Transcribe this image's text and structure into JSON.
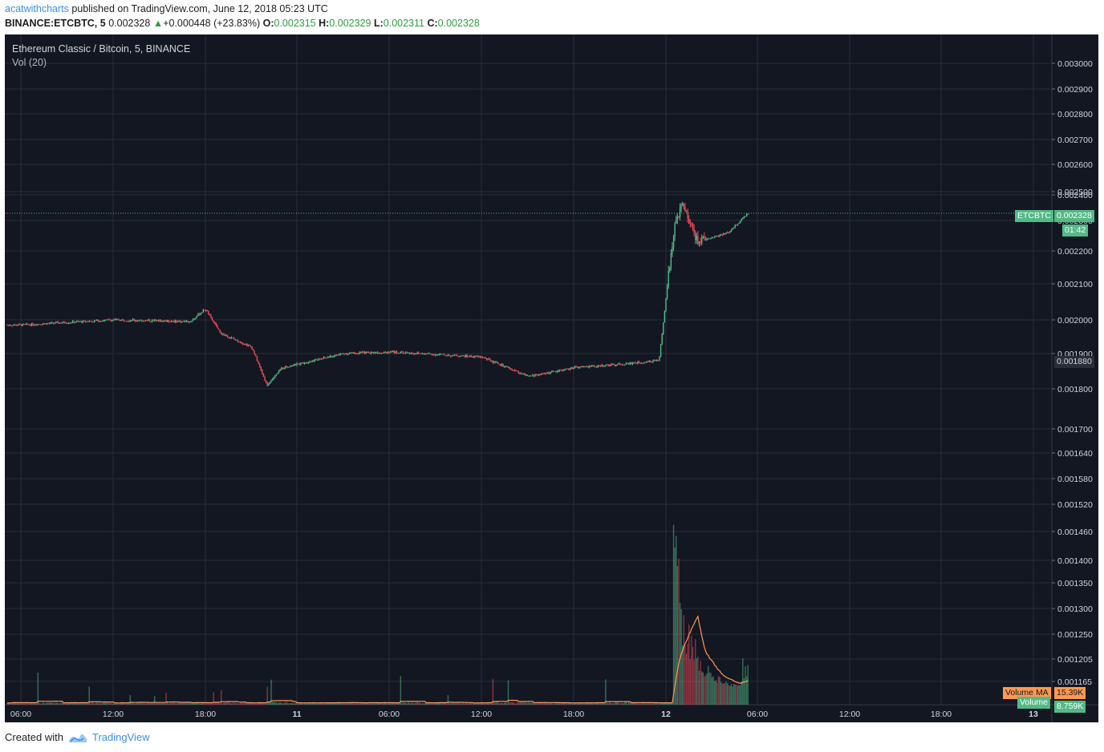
{
  "header": {
    "author": "acatwithcharts",
    "published_text": "published on TradingView.com, June 12, 2018 05:23 UTC",
    "symbol_line": "BINANCE:ETCBTC, 5",
    "last_price": "0.002328",
    "change": "+0.000448 (+23.83%)",
    "open_label": "O:",
    "open": "0.002315",
    "high_label": "H:",
    "high": "0.002329",
    "low_label": "L:",
    "low": "0.002311",
    "close_label": "C:",
    "close": "0.002328"
  },
  "legend": {
    "title": "Ethereum Classic / Bitcoin, 5, BINANCE",
    "volume_indicator": "Vol (20)"
  },
  "price_tags": {
    "symbol": "ETCBTC",
    "price": "0.002328",
    "countdown": "01:42",
    "prev_level": "0.001880",
    "volume_ma_label": "Volume MA",
    "volume_ma_value": "15.39K",
    "volume_label": "Volume",
    "volume_value": "8.759K"
  },
  "footer": {
    "created_with": "Created with",
    "brand": "TradingView"
  },
  "colors": {
    "background": "#131722",
    "grid": "#2a2e39",
    "up": "#53b987",
    "down": "#eb4d5c",
    "price_tag": "#53b987",
    "volume_ma": "#ff9850",
    "author_link": "#3d8ee8"
  },
  "chart_data": {
    "type": "candlestick",
    "title": "Ethereum Classic / Bitcoin, 5, BINANCE",
    "symbol": "BINANCE:ETCBTC",
    "interval": "5",
    "y_axis_ticks": [
      "0.003000",
      "0.002900",
      "0.002800",
      "0.002700",
      "0.002600",
      "0.002500",
      "0.002400",
      "0.002300",
      "0.002200",
      "0.002100",
      "0.002000",
      "0.001900",
      "0.001800",
      "0.001700",
      "0.001640",
      "0.001580",
      "0.001520",
      "0.001460",
      "0.001400",
      "0.001350",
      "0.001300",
      "0.001250",
      "0.001205",
      "0.001165"
    ],
    "x_axis_ticks": [
      "06:00",
      "12:00",
      "18:00",
      "11",
      "06:00",
      "12:00",
      "18:00",
      "12",
      "06:00",
      "12:00",
      "18:00",
      "13"
    ],
    "price_path": [
      {
        "t": "06:00",
        "price": 0.001985
      },
      {
        "t": "12:00",
        "price": 0.002
      },
      {
        "t": "17:00",
        "price": 0.001995
      },
      {
        "t": "18:00",
        "price": 0.00203
      },
      {
        "t": "19:00",
        "price": 0.00196
      },
      {
        "t": "21:00",
        "price": 0.00192
      },
      {
        "t": "22:00",
        "price": 0.00181
      },
      {
        "t": "23:00",
        "price": 0.00186
      },
      {
        "t": "00:00",
        "price": 0.00187
      },
      {
        "t": "03:00",
        "price": 0.0019
      },
      {
        "t": "06:00",
        "price": 0.001905
      },
      {
        "t": "12:00",
        "price": 0.00189
      },
      {
        "t": "15:00",
        "price": 0.001835
      },
      {
        "t": "18:00",
        "price": 0.00186
      },
      {
        "t": "21:00",
        "price": 0.00187
      },
      {
        "t": "23:30",
        "price": 0.00188
      },
      {
        "t": "00:30",
        "price": 0.00228
      },
      {
        "t": "01:00",
        "price": 0.00236
      },
      {
        "t": "02:00",
        "price": 0.00223
      },
      {
        "t": "04:00",
        "price": 0.00226
      },
      {
        "t": "05:20",
        "price": 0.002328
      }
    ],
    "volume_ma_latest": "15.39K",
    "volume_latest": "8.759K"
  }
}
